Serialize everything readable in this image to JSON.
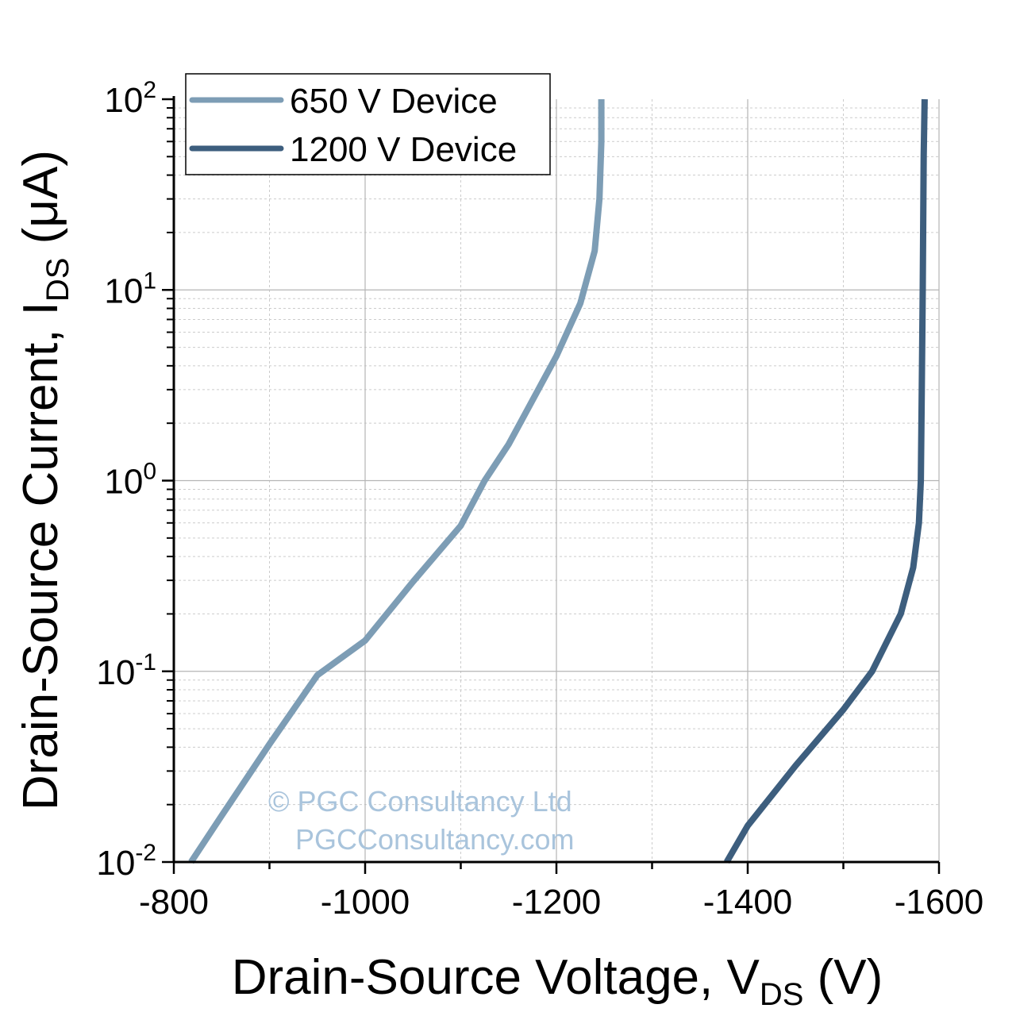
{
  "chart_data": {
    "type": "line",
    "xlabel": {
      "main": "Drain-Source Voltage, V",
      "sub": "DS",
      "unit": " (V)"
    },
    "ylabel": {
      "main": "Drain-Source Current, I",
      "sub": "DS",
      "unit": " (μA)"
    },
    "xlim": [
      -800,
      -1600
    ],
    "ylim": [
      0.01,
      100
    ],
    "yscale": "log",
    "grid": true,
    "legend_position": "top-left",
    "x_ticks": [
      "-800",
      "-1000",
      "-1200",
      "-1400",
      "-1600"
    ],
    "y_ticks": [
      {
        "base": "10",
        "exp": "-2"
      },
      {
        "base": "10",
        "exp": "-1"
      },
      {
        "base": "10",
        "exp": "0"
      },
      {
        "base": "10",
        "exp": "1"
      },
      {
        "base": "10",
        "exp": "2"
      }
    ],
    "series": [
      {
        "name": "650 V Device",
        "color": "#7d9db5",
        "points": [
          [
            -818,
            0.01
          ],
          [
            -850,
            0.0175
          ],
          [
            -900,
            0.0415
          ],
          [
            -950,
            0.0955
          ],
          [
            -1000,
            0.145
          ],
          [
            -1050,
            0.295
          ],
          [
            -1100,
            0.58
          ],
          [
            -1125,
            1.0
          ],
          [
            -1150,
            1.55
          ],
          [
            -1200,
            4.5
          ],
          [
            -1225,
            8.5
          ],
          [
            -1240,
            16
          ],
          [
            -1245,
            30
          ],
          [
            -1247,
            60
          ],
          [
            -1247,
            100
          ]
        ]
      },
      {
        "name": "1200 V Device",
        "color": "#3d5e7e",
        "points": [
          [
            -1378,
            0.01
          ],
          [
            -1400,
            0.0155
          ],
          [
            -1450,
            0.032
          ],
          [
            -1500,
            0.063
          ],
          [
            -1530,
            0.1
          ],
          [
            -1560,
            0.2
          ],
          [
            -1573,
            0.35
          ],
          [
            -1579,
            0.6
          ],
          [
            -1581,
            1.0
          ],
          [
            -1582,
            3
          ],
          [
            -1583,
            10
          ],
          [
            -1584,
            50
          ],
          [
            -1585,
            100
          ]
        ]
      }
    ],
    "watermark": [
      "© PGC Consultancy Ltd",
      "PGCConsultancy.com"
    ]
  }
}
